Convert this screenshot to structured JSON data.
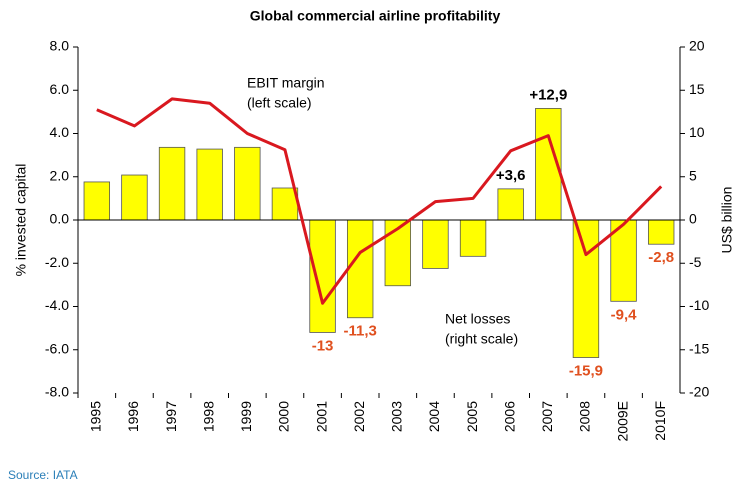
{
  "chart_data": {
    "type": "bar_line",
    "title": "Global commercial airline profitability",
    "categories": [
      "1995",
      "1996",
      "1997",
      "1998",
      "1999",
      "2000",
      "2001",
      "2002",
      "2003",
      "2004",
      "2005",
      "2006",
      "2007",
      "2008",
      "2009E",
      "2010F"
    ],
    "series": [
      {
        "name": "Net losses",
        "type": "bar",
        "axis": "y2",
        "color": "#ffff00",
        "values": [
          4.4,
          5.2,
          8.4,
          8.2,
          8.4,
          3.7,
          -13,
          -11.3,
          -7.6,
          -5.6,
          -4.2,
          3.6,
          12.9,
          -15.9,
          -9.4,
          -2.8
        ],
        "value_labels": [
          null,
          null,
          null,
          null,
          null,
          null,
          "-13",
          "-11,3",
          null,
          null,
          null,
          "+3,6",
          "+12,9",
          "-15,9",
          "-9,4",
          "-2,8"
        ]
      },
      {
        "name": "EBIT margin",
        "type": "line",
        "color": "#d9181f",
        "values": [
          5.1,
          4.35,
          5.6,
          5.4,
          4.0,
          3.25,
          -3.85,
          -1.5,
          -0.4,
          0.85,
          1.0,
          3.2,
          3.9,
          -1.6,
          -0.2,
          1.55
        ]
      }
    ],
    "annotations": [
      "EBIT margin",
      "(left scale)",
      "Net losses",
      "(right scale)"
    ],
    "ylabel": "% invested capital",
    "y2label": "US$ billion",
    "ylim": [
      -8,
      8
    ],
    "yticks": [
      {
        "value": -8,
        "label": "-8.0"
      },
      {
        "value": -6,
        "label": "-6.0"
      },
      {
        "value": -4,
        "label": "-4.0"
      },
      {
        "value": -2,
        "label": "-2.0"
      },
      {
        "value": 0,
        "label": "0.0"
      },
      {
        "value": 2,
        "label": "2.0"
      },
      {
        "value": 4,
        "label": "4.0"
      },
      {
        "value": 6,
        "label": "6.0"
      },
      {
        "value": 8,
        "label": "8.0"
      }
    ],
    "y2lim": [
      -20,
      20
    ],
    "y2ticks": [
      -20,
      -15,
      -10,
      -5,
      0,
      5,
      10,
      15,
      20
    ],
    "source": "Source: IATA"
  }
}
